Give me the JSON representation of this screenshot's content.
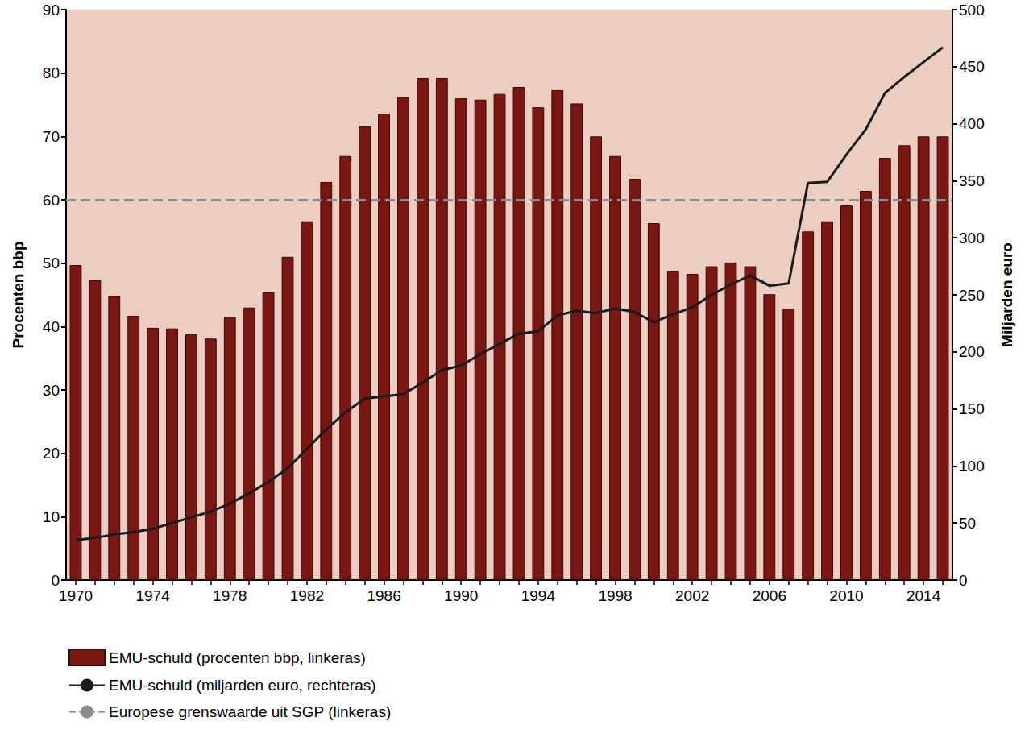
{
  "chart_data": {
    "type": "bar",
    "categories": [
      "1970",
      null,
      null,
      null,
      "1974",
      null,
      null,
      null,
      "1978",
      null,
      null,
      null,
      "1982",
      null,
      null,
      null,
      "1986",
      null,
      null,
      null,
      "1990",
      null,
      null,
      null,
      "1994",
      null,
      null,
      null,
      "1998",
      null,
      null,
      null,
      "2002",
      null,
      null,
      null,
      "2006",
      null,
      null,
      null,
      "2010",
      null,
      null,
      null,
      "2014",
      null
    ],
    "series": [
      {
        "name": "EMU-schuld (procenten bbp, linkeras)",
        "type": "bar",
        "color": "#7b1712",
        "values": [
          49.7,
          47.3,
          44.8,
          41.7,
          39.8,
          39.7,
          38.8,
          38.1,
          41.5,
          43.0,
          45.4,
          51.0,
          56.6,
          62.8,
          66.9,
          71.6,
          73.6,
          76.2,
          79.2,
          79.2,
          76.0,
          75.8,
          76.7,
          77.8,
          74.6,
          77.3,
          75.2,
          70.0,
          66.9,
          63.3,
          56.3,
          48.8,
          48.3,
          49.5,
          50.1,
          49.5,
          45.1,
          42.8,
          55.0,
          56.6,
          59.1,
          61.4,
          66.6,
          68.6,
          70.0,
          70.0
        ]
      },
      {
        "name": "EMU-schuld (miljarden euro, rechteras)",
        "type": "line",
        "axis": "y2",
        "color": "#1a1a1a",
        "values": [
          35,
          37,
          40,
          42,
          45,
          50,
          55,
          60,
          67,
          76,
          86,
          98,
          115,
          132,
          147,
          159,
          161,
          163,
          173,
          184,
          188,
          198,
          207,
          216,
          218,
          232,
          236,
          234,
          238,
          235,
          226,
          233,
          239,
          250,
          259,
          267,
          258,
          260,
          348,
          349,
          373,
          395,
          427,
          441,
          454,
          467
        ]
      }
    ],
    "reference_lines": [
      {
        "name": "Europese grenswaarde uit SGP (linkeras)",
        "value": 60,
        "axis": "y",
        "color": "#8c8c8c",
        "line_style": "dashed"
      }
    ],
    "y_label": "Procenten bbp",
    "y2_label": "Miljarden euro",
    "ylim": [
      0,
      90
    ],
    "yticks": [
      0,
      10,
      20,
      30,
      40,
      50,
      60,
      70,
      80,
      90
    ],
    "y2lim": [
      0,
      500
    ],
    "y2ticks": [
      0,
      50,
      100,
      150,
      200,
      250,
      300,
      350,
      400,
      450,
      500
    ],
    "legend": "bottom",
    "grid": false
  }
}
